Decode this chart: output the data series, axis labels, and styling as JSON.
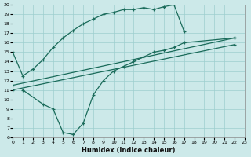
{
  "xlabel": "Humidex (Indice chaleur)",
  "xlim": [
    0,
    23
  ],
  "ylim": [
    6,
    20
  ],
  "yticks": [
    6,
    7,
    8,
    9,
    10,
    11,
    12,
    13,
    14,
    15,
    16,
    17,
    18,
    19,
    20
  ],
  "xticks": [
    0,
    1,
    2,
    3,
    4,
    5,
    6,
    7,
    8,
    9,
    10,
    11,
    12,
    13,
    14,
    15,
    16,
    17,
    18,
    19,
    20,
    21,
    22,
    23
  ],
  "background_color": "#cce9e9",
  "grid_color": "#9ecece",
  "line_color": "#1a6b5a",
  "line1_x": [
    0,
    1,
    2,
    3,
    4,
    5,
    6,
    7,
    8,
    9,
    10,
    11,
    12,
    13,
    14,
    15,
    16,
    17
  ],
  "line1_y": [
    15,
    12.5,
    13.2,
    14.2,
    15.5,
    16.5,
    17.3,
    18.0,
    18.5,
    19.0,
    19.2,
    19.5,
    19.5,
    19.7,
    19.5,
    19.8,
    20.0,
    17.2
  ],
  "line2_x": [
    1,
    3,
    4,
    5,
    6,
    7,
    8,
    9,
    10,
    11,
    12,
    13,
    14,
    15,
    16,
    17,
    22
  ],
  "line2_y": [
    11.0,
    9.5,
    9.0,
    6.5,
    6.3,
    7.5,
    10.5,
    12.0,
    13.0,
    13.5,
    14.0,
    14.5,
    15.0,
    15.2,
    15.5,
    16.0,
    16.5
  ],
  "line3_x": [
    0,
    22
  ],
  "line3_y": [
    11.5,
    16.5
  ],
  "line4_x": [
    0,
    22
  ],
  "line4_y": [
    11.0,
    15.8
  ]
}
